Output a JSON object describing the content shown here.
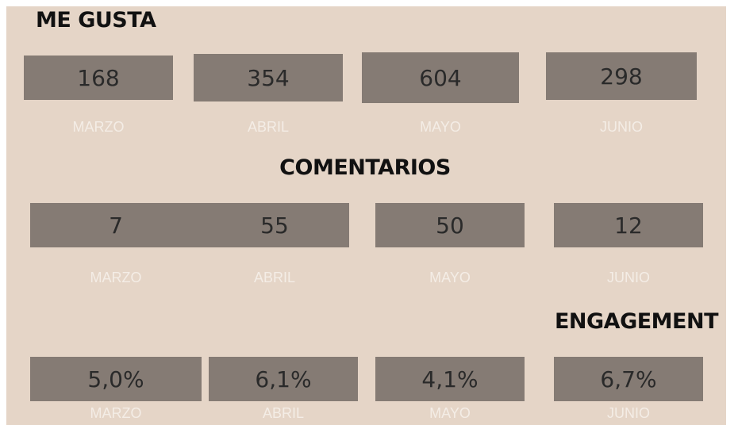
{
  "sections": [
    {
      "title": "ME GUSTA",
      "items": [
        {
          "value": "168",
          "label": "MARZO"
        },
        {
          "value": "354",
          "label": "ABRIL"
        },
        {
          "value": "604",
          "label": "MAYO"
        },
        {
          "value": "298",
          "label": "JUNIO"
        }
      ]
    },
    {
      "title": "COMENTARIOS",
      "items": [
        {
          "value": "7",
          "label": "MARZO"
        },
        {
          "value": "55",
          "label": "ABRIL"
        },
        {
          "value": "50",
          "label": "MAYO"
        },
        {
          "value": "12",
          "label": "JUNIO"
        }
      ]
    },
    {
      "title": "ENGAGEMENT",
      "items": [
        {
          "value": "5,0%",
          "label": "MARZO"
        },
        {
          "value": "6,1%",
          "label": "ABRIL"
        },
        {
          "value": "4,1%",
          "label": "MAYO"
        },
        {
          "value": "6,7%",
          "label": "JUNIO"
        }
      ]
    }
  ]
}
